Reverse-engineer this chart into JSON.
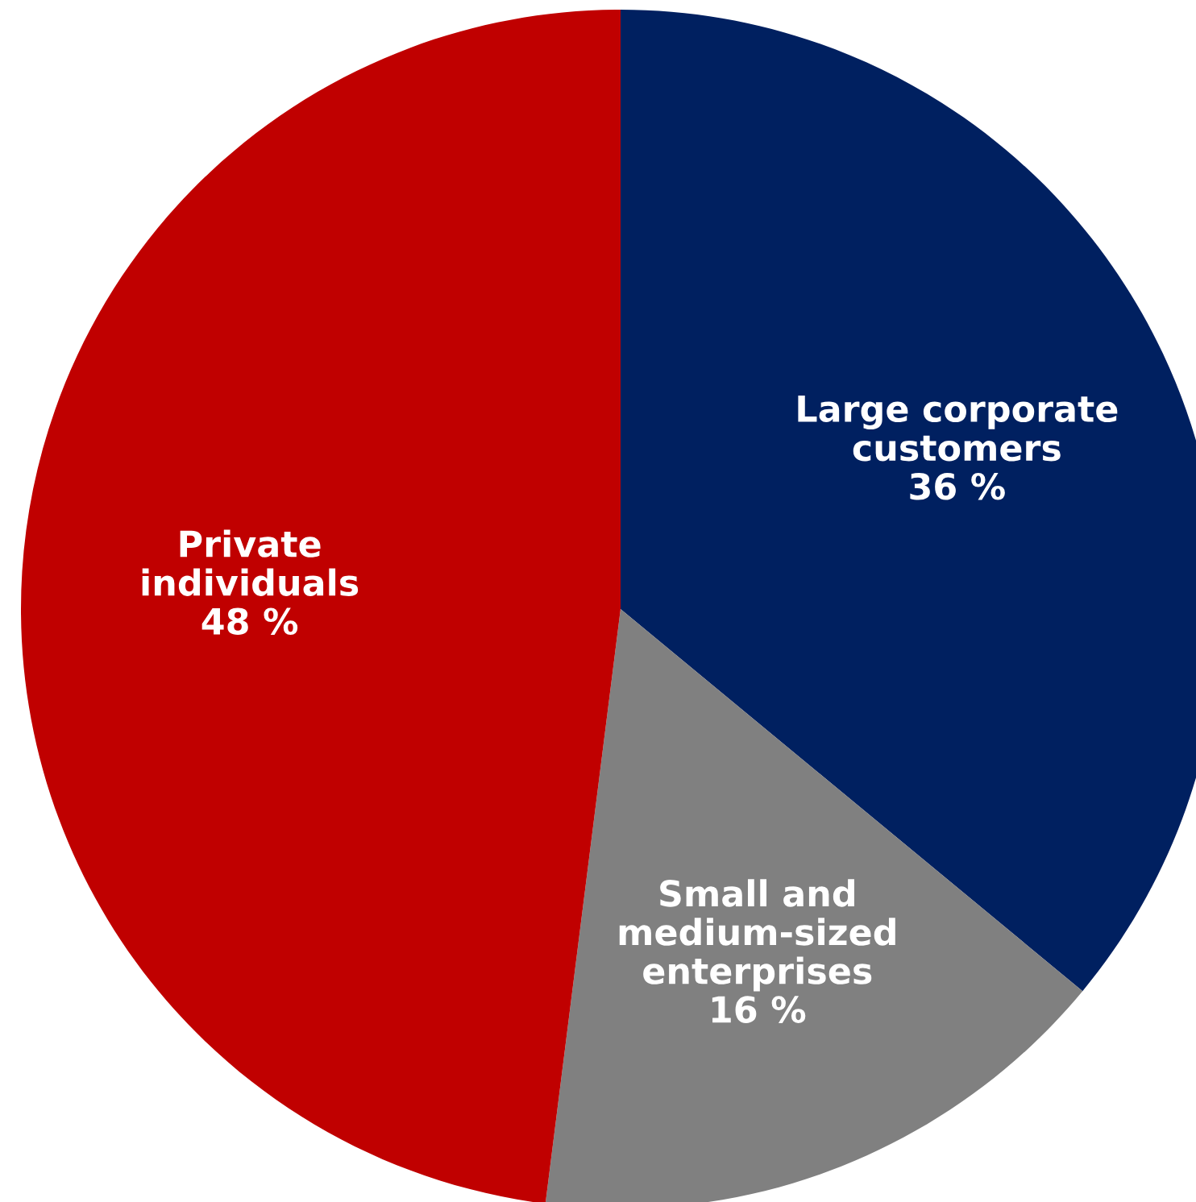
{
  "chart_data": {
    "type": "pie",
    "categories": [
      "Large corporate\ncustomers",
      "Small and\nmedium-sized\nenterprises",
      "Private\nindividuals"
    ],
    "values": [
      36,
      16,
      48
    ],
    "value_labels": [
      "36 %",
      "16 %",
      "48 %"
    ],
    "colors": [
      "#002060",
      "#808080",
      "#c00000"
    ],
    "legend": false
  }
}
